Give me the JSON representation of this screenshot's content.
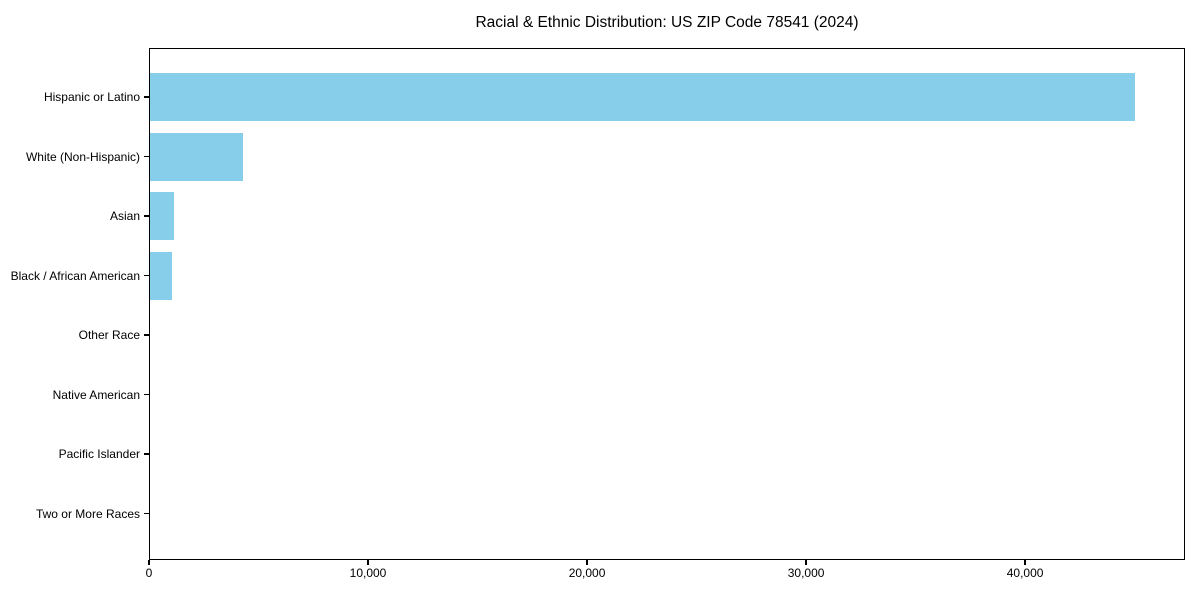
{
  "chart_data": {
    "type": "bar",
    "orientation": "horizontal",
    "title": "Racial & Ethnic Distribution: US ZIP Code 78541 (2024)",
    "categories": [
      "Hispanic or Latino",
      "White (Non-Hispanic)",
      "Asian",
      "Black / African American",
      "Other Race",
      "Native American",
      "Pacific Islander",
      "Two or More Races"
    ],
    "values": [
      45000,
      4300,
      1150,
      1050,
      0,
      0,
      0,
      0
    ],
    "xlabel": "",
    "ylabel": "",
    "xlim": [
      0,
      47300
    ],
    "xticks": [
      0,
      10000,
      20000,
      30000,
      40000
    ],
    "xtick_labels": [
      "0",
      "10,000",
      "20,000",
      "30,000",
      "40,000"
    ],
    "bar_color": "#87CEEB",
    "axis_color": "#000000",
    "text_color": "#000000",
    "grid": false,
    "legend": "none"
  }
}
